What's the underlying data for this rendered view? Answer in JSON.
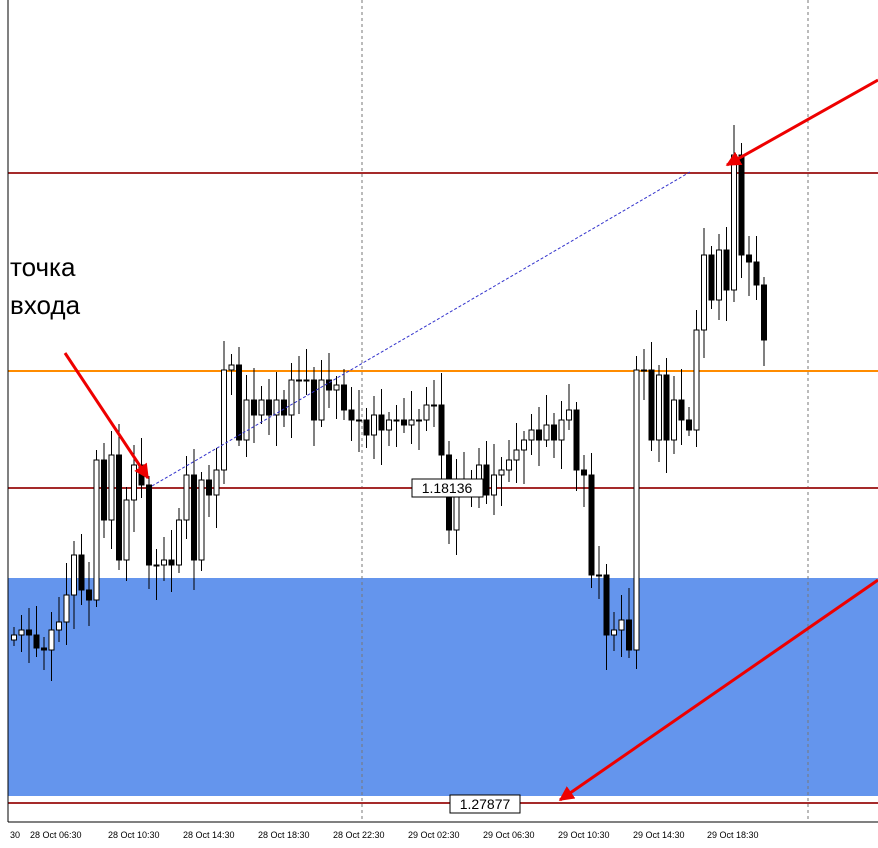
{
  "annotation": {
    "lines": [
      "точка",
      "входа"
    ]
  },
  "price_labels": [
    "1.18136",
    "1.27877"
  ],
  "time_axis": [
    "30",
    "28 Oct 06:30",
    "28 Oct 10:30",
    "28 Oct 14:30",
    "28 Oct 18:30",
    "28 Oct 22:30",
    "29 Oct 02:30",
    "29 Oct 06:30",
    "29 Oct 10:30",
    "29 Oct 14:30",
    "29 Oct 18:30"
  ]
}
